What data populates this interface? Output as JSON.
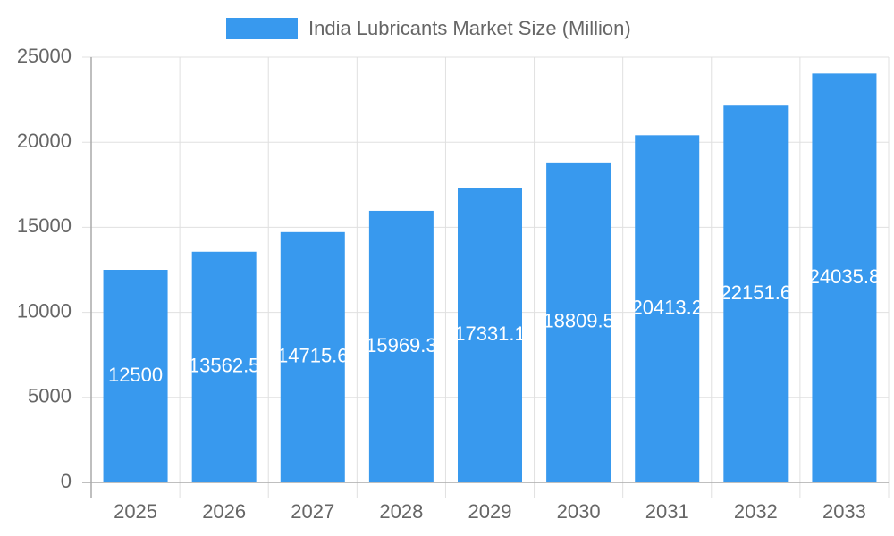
{
  "chart_data": {
    "type": "bar",
    "categories": [
      "2025",
      "2026",
      "2027",
      "2028",
      "2029",
      "2030",
      "2031",
      "2032",
      "2033"
    ],
    "series": [
      {
        "name": "India Lubricants Market Size (Million)",
        "color": "#3899ee",
        "values": [
          12500,
          13562.5,
          14715.6,
          15969.3,
          17331.1,
          18809.5,
          20413.2,
          22151.6,
          24035.8
        ]
      }
    ],
    "ylim": [
      0,
      25000
    ],
    "yticks": [
      0,
      5000,
      10000,
      15000,
      20000,
      25000
    ],
    "grid": true,
    "legend": "top",
    "data_labels": true
  }
}
